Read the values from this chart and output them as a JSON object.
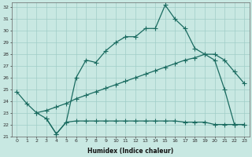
{
  "xlabel": "Humidex (Indice chaleur)",
  "bg_color": "#c8e8e2",
  "grid_color": "#a0cdc7",
  "line_color": "#1a6b60",
  "xlim": [
    -0.5,
    23.5
  ],
  "ylim": [
    21,
    32.4
  ],
  "yticks": [
    21,
    22,
    23,
    24,
    25,
    26,
    27,
    28,
    29,
    30,
    31,
    32
  ],
  "xticks": [
    0,
    1,
    2,
    3,
    4,
    5,
    6,
    7,
    8,
    9,
    10,
    11,
    12,
    13,
    14,
    15,
    16,
    17,
    18,
    19,
    20,
    21,
    22,
    23
  ],
  "line1_x": [
    0,
    1,
    2,
    3,
    4,
    5,
    6,
    7,
    8,
    9,
    10,
    11,
    12,
    13,
    14,
    15,
    16,
    17,
    18,
    19,
    20,
    21,
    22,
    23
  ],
  "line1_y": [
    24.8,
    23.8,
    23.0,
    22.5,
    21.2,
    22.2,
    26.0,
    27.5,
    27.3,
    28.3,
    29.0,
    29.5,
    29.5,
    30.2,
    30.2,
    32.2,
    31.0,
    30.2,
    28.5,
    28.0,
    27.5,
    25.0,
    22.0,
    22.0
  ],
  "line2_x": [
    2,
    3,
    4,
    5,
    6,
    7,
    8,
    9,
    10,
    11,
    12,
    13,
    14,
    15,
    16,
    17,
    18,
    19,
    20,
    21,
    22,
    23
  ],
  "line2_y": [
    23.0,
    23.2,
    23.5,
    23.8,
    24.2,
    24.5,
    24.8,
    25.1,
    25.4,
    25.7,
    26.0,
    26.3,
    26.6,
    26.9,
    27.2,
    27.5,
    27.7,
    28.0,
    28.0,
    27.5,
    26.5,
    25.5
  ],
  "line3_x": [
    3,
    4,
    5,
    6,
    7,
    8,
    9,
    10,
    11,
    12,
    13,
    14,
    15,
    16,
    17,
    18,
    19,
    20,
    21,
    22,
    23
  ],
  "line3_y": [
    22.5,
    21.2,
    22.2,
    22.3,
    22.3,
    22.3,
    22.3,
    22.3,
    22.3,
    22.3,
    22.3,
    22.3,
    22.3,
    22.3,
    22.2,
    22.2,
    22.2,
    22.0,
    22.0,
    22.0,
    22.0
  ]
}
